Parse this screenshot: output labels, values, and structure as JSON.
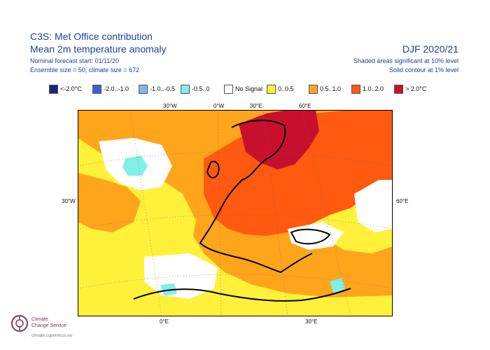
{
  "header": {
    "title_line1": "C3S: Met Office contribution",
    "title_line2": "Mean 2m temperature anomaly",
    "forecast_start": "Nominal forecast start: 01/11/20",
    "ensemble": "Ensemble size = 50, climate size = 672",
    "season": "DJF 2020/21",
    "significance_note1": "Shaded areas significant at 10% level",
    "significance_note2": "Solid contour at 1% level"
  },
  "legend": [
    {
      "label": "<-2.0°C",
      "color": "#1a237e"
    },
    {
      "label": "-2.0..-1.0",
      "color": "#3f5fe0"
    },
    {
      "label": "-1.0..-0.5",
      "color": "#7fb8ef"
    },
    {
      "label": "-0.5..0",
      "color": "#7ff0e8"
    },
    {
      "label": "No Signal",
      "color": "#ffffff"
    },
    {
      "label": "0..0.5",
      "color": "#fff13a"
    },
    {
      "label": "0.5..1.0",
      "color": "#ffa51c"
    },
    {
      "label": "1.0..2.0",
      "color": "#ff5a10"
    },
    {
      "label": "> 2.0°C",
      "color": "#c8102e"
    }
  ],
  "axes": {
    "top_labels": [
      "30°W",
      "0°W",
      "30°E",
      "60°E"
    ],
    "bottom_labels": [
      "0°E",
      "30°E"
    ],
    "left_label": "30°W",
    "right_label": "60°E"
  },
  "logo": {
    "line1": "Climate",
    "line2": "Change Service",
    "url": "climate.copernicus.eu"
  }
}
